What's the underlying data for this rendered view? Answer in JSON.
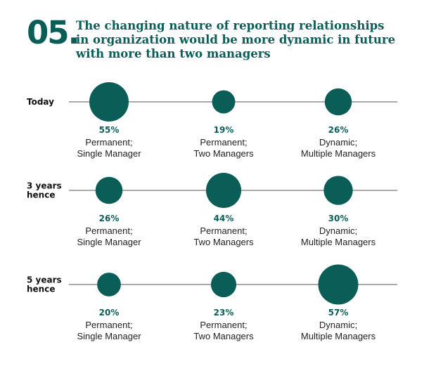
{
  "header": {
    "number": "05.",
    "title": "The changing nature of reporting relationships in organization would be more dynamic in future with more than two managers"
  },
  "colors": {
    "accent": "#0b5e58",
    "line": "#777777"
  },
  "chart_data": {
    "type": "bubble",
    "title": "The changing nature of reporting relationships in organization would be more dynamic in future with more than two managers",
    "categories": [
      [
        "Permanent;",
        "Single Manager"
      ],
      [
        "Permanent;",
        "Two Managers"
      ],
      [
        "Dynamic;",
        "Multiple Managers"
      ]
    ],
    "rows": [
      {
        "label": [
          "Today"
        ],
        "values": [
          55,
          19,
          26
        ]
      },
      {
        "label": [
          "3 years",
          "hence"
        ],
        "values": [
          26,
          44,
          30
        ]
      },
      {
        "label": [
          "5 years",
          "hence"
        ],
        "values": [
          20,
          23,
          57
        ]
      }
    ],
    "unit": "%"
  }
}
